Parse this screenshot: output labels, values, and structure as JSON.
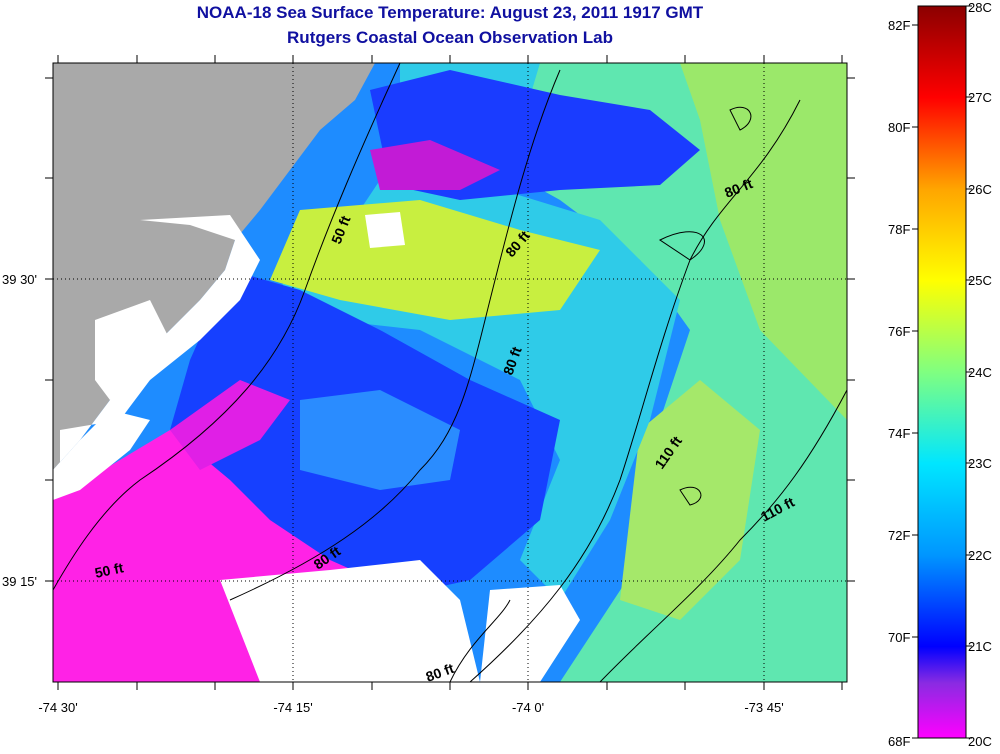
{
  "title": "NOAA-18 Sea Surface Temperature:  August 23, 2011 1917 GMT",
  "subtitle": "Rutgers Coastal Ocean Observation Lab",
  "map": {
    "lat_labels": [
      {
        "text": "39 30'",
        "lat": 39.5
      },
      {
        "text": "39 15'",
        "lat": 39.25
      }
    ],
    "lon_labels": [
      {
        "text": "-74 30'",
        "lon": -74.5
      },
      {
        "text": "-74 15'",
        "lon": -74.25
      },
      {
        "text": "-74 0'",
        "lon": -74.0
      },
      {
        "text": "-73 45'",
        "lon": -73.75
      }
    ],
    "depth_labels": [
      "50 ft",
      "80 ft",
      "80 ft",
      "80 ft",
      "110 ft",
      "110 ft",
      "50 ft",
      "80 ft",
      "80 ft"
    ],
    "colors": {
      "land": "#a9a9a9",
      "nodata": "#ffffff"
    }
  },
  "colorbar": {
    "fahrenheit_labels": [
      "82F",
      "80F",
      "78F",
      "76F",
      "74F",
      "72F",
      "70F",
      "68F"
    ],
    "celsius_labels": [
      "28C",
      "27C",
      "26C",
      "25C",
      "24C",
      "23C",
      "22C",
      "21C",
      "20C"
    ],
    "range_c": [
      20,
      28
    ],
    "stops": [
      {
        "c": 20.0,
        "color": "#ff00ff"
      },
      {
        "c": 20.6,
        "color": "#8a2be2"
      },
      {
        "c": 21.0,
        "color": "#0000ff"
      },
      {
        "c": 22.0,
        "color": "#0096ff"
      },
      {
        "c": 23.0,
        "color": "#00e6ff"
      },
      {
        "c": 24.0,
        "color": "#80ff80"
      },
      {
        "c": 25.0,
        "color": "#ffff00"
      },
      {
        "c": 26.0,
        "color": "#ffa500"
      },
      {
        "c": 27.0,
        "color": "#ff0000"
      },
      {
        "c": 28.0,
        "color": "#8b0000"
      }
    ]
  }
}
